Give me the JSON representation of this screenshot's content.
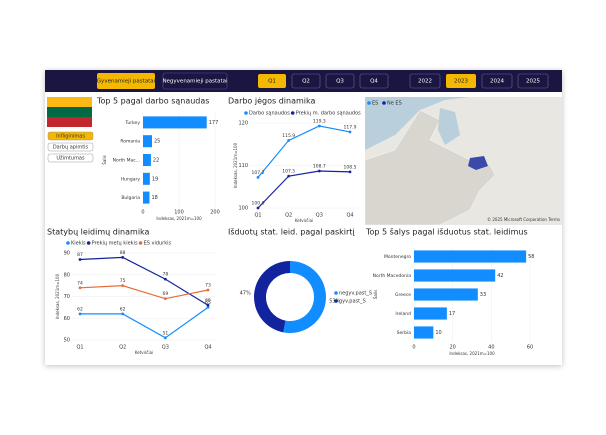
{
  "nav": {
    "tabs": [
      "Gyvenamieji pastatai",
      "Negyvenamieji pastatai"
    ],
    "quarters": [
      "Q1",
      "Q2",
      "Q3",
      "Q4"
    ],
    "years": [
      "2022",
      "2023",
      "2024",
      "2025"
    ]
  },
  "sidebar": {
    "buttons": [
      "Infliginimas",
      "Darbų apimtis",
      "Užimtumas"
    ]
  },
  "map": {
    "legend": [
      "ES",
      "Ne ES"
    ],
    "credit": "© 2025 Microsoft Corporation Terms"
  },
  "chart_data": [
    {
      "type": "hbar",
      "title": "Top 5 pagal darbo sąnaudas",
      "categories": [
        "Turkey",
        "Romania",
        "North Mac...",
        "Hungary",
        "Bulgaria"
      ],
      "values": [
        177,
        25,
        22,
        19,
        18
      ],
      "color": "#118dff",
      "xlim": [
        0,
        200
      ],
      "xticks": [
        0,
        100,
        200
      ],
      "xlabel": "Indeksas, 2021m=100",
      "ylabel": "Šalis"
    },
    {
      "type": "line",
      "title": "Darbo jėgos dinamika",
      "categories": [
        "Q1",
        "Q2",
        "Q3",
        "Q4"
      ],
      "series": [
        {
          "name": "Darbo sąnaudos",
          "color": "#118dff",
          "values": [
            107.2,
            115.9,
            119.3,
            117.9
          ]
        },
        {
          "name": "Prekių m. darbo sąnaudos",
          "color": "#12239e",
          "values": [
            100,
            107.5,
            108.7,
            108.5
          ],
          "value_labels": [
            "100.0",
            "107.5",
            "108.7",
            "108.5"
          ]
        }
      ],
      "ylim": [
        100,
        120
      ],
      "yticks": [
        100,
        110,
        120
      ],
      "xlabel": "Ketvirčiai",
      "ylabel": "Indeksas, 2021m=100"
    },
    {
      "type": "line",
      "title": "Statybų leidimų dinamika",
      "categories": [
        "Q1",
        "Q2",
        "Q3",
        "Q4"
      ],
      "series": [
        {
          "name": "Kiekis",
          "color": "#118dff",
          "values": [
            62,
            62,
            51,
            65
          ]
        },
        {
          "name": "Prekių metų kiekis",
          "color": "#12239e",
          "values": [
            87,
            88,
            78,
            66
          ]
        },
        {
          "name": "ES vidurkis",
          "color": "#e66c37",
          "values": [
            74,
            75,
            69,
            73
          ]
        }
      ],
      "ylim": [
        50,
        90
      ],
      "yticks": [
        50,
        60,
        70,
        80,
        90
      ],
      "xlabel": "Ketvirčiai",
      "ylabel": "Indeksas, 2021m=100"
    },
    {
      "type": "donut",
      "title": "Išduotų stat. leid. pagal paskirtį",
      "categories": [
        "negyv.past_S",
        "gyv.past_S"
      ],
      "values": [
        53,
        47
      ],
      "value_labels": [
        "53%",
        "47%"
      ],
      "colors": [
        "#118dff",
        "#12239e"
      ]
    },
    {
      "type": "hbar",
      "title": "Top 5 šalys pagal išduotus stat. leidimus",
      "categories": [
        "Montenegro",
        "North Macedonia",
        "Greece",
        "Ireland",
        "Serbia"
      ],
      "values": [
        58,
        42,
        33,
        17,
        10
      ],
      "color": "#118dff",
      "xlim": [
        0,
        60
      ],
      "xticks": [
        0,
        20,
        40,
        60
      ],
      "xlabel": "Indeksas, 2021m=100",
      "ylabel": "Šalis"
    }
  ]
}
